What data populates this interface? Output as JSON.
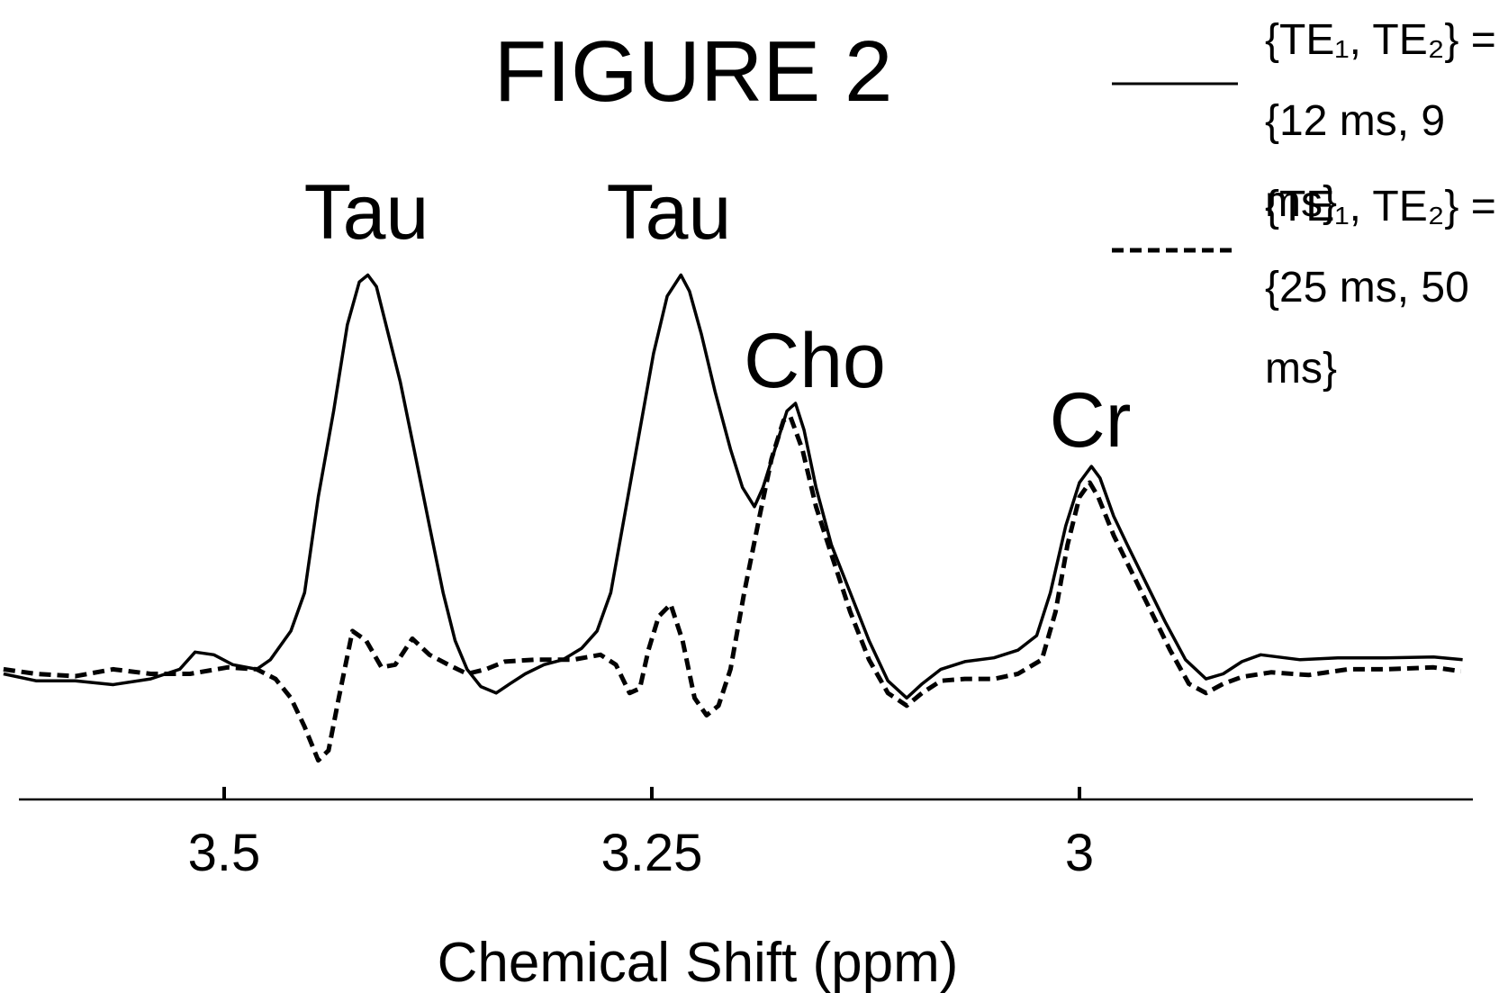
{
  "chart_data": {
    "type": "line",
    "title": "FIGURE 2",
    "x_label": "Chemical Shift (ppm)",
    "xlim": [
      3.62,
      2.77
    ],
    "ylim": [
      -34,
      125
    ],
    "xticks": [
      3.5,
      3.25,
      3
    ],
    "grid": false,
    "legend": "top-right",
    "annotations": [
      "Tau",
      "Tau",
      "Cho",
      "Cr"
    ],
    "series": [
      {
        "name": "{TE₁, TE₂} =\n{12 ms, 9 ms}",
        "color": "#000000",
        "dash": false,
        "x": [
          3.629,
          3.61,
          3.587,
          3.565,
          3.543,
          3.526,
          3.517,
          3.506,
          3.495,
          3.481,
          3.473,
          3.461,
          3.453,
          3.445,
          3.436,
          3.428,
          3.421,
          3.416,
          3.411,
          3.404,
          3.397,
          3.389,
          3.38,
          3.372,
          3.365,
          3.358,
          3.35,
          3.341,
          3.333,
          3.324,
          3.313,
          3.302,
          3.291,
          3.282,
          3.274,
          3.266,
          3.257,
          3.249,
          3.241,
          3.233,
          3.228,
          3.221,
          3.213,
          3.204,
          3.197,
          3.19,
          3.185,
          3.178,
          3.171,
          3.166,
          3.161,
          3.154,
          3.145,
          3.134,
          3.123,
          3.112,
          3.101,
          3.092,
          3.081,
          3.067,
          3.05,
          3.036,
          3.025,
          3.017,
          3.008,
          3.0,
          2.993,
          2.988,
          2.98,
          2.972,
          2.961,
          2.95,
          2.938,
          2.926,
          2.916,
          2.905,
          2.894,
          2.871,
          2.849,
          2.821,
          2.793,
          2.776
        ],
        "values": [
          -1.2,
          -3,
          -3,
          -4,
          -2.5,
          0,
          4.5,
          3.8,
          1.2,
          0,
          2.5,
          10,
          20,
          45,
          67.5,
          90,
          101.2,
          103,
          100,
          87.5,
          75,
          57.5,
          37.5,
          20,
          7.5,
          0,
          -4.5,
          -6.2,
          -3.8,
          -1.2,
          1.2,
          2.5,
          5.5,
          10,
          20,
          40,
          62.5,
          82.5,
          97.5,
          103,
          98.8,
          87.5,
          72.5,
          57.5,
          47.5,
          42.5,
          47.5,
          57.5,
          67.5,
          69.5,
          62.5,
          47.5,
          32.5,
          20,
          7.5,
          -3,
          -7.5,
          -3.8,
          0,
          2,
          3,
          5,
          8.8,
          20,
          37.5,
          48.8,
          53,
          50,
          40,
          32.5,
          22.5,
          12.5,
          2.5,
          -2.5,
          -1.2,
          2,
          3.8,
          2.5,
          3,
          3,
          3.2,
          2.5
        ]
      },
      {
        "name": "{TE₁, TE₂} =\n{25 ms, 50 ms}",
        "color": "#000000",
        "dash": true,
        "x": [
          3.629,
          3.61,
          3.587,
          3.565,
          3.543,
          3.52,
          3.498,
          3.481,
          3.47,
          3.461,
          3.453,
          3.445,
          3.439,
          3.433,
          3.425,
          3.417,
          3.408,
          3.4,
          3.39,
          3.38,
          3.369,
          3.358,
          3.347,
          3.336,
          3.319,
          3.296,
          3.28,
          3.271,
          3.263,
          3.257,
          3.252,
          3.246,
          3.239,
          3.232,
          3.225,
          3.218,
          3.211,
          3.204,
          3.196,
          3.187,
          3.18,
          3.173,
          3.169,
          3.162,
          3.154,
          3.145,
          3.134,
          3.123,
          3.112,
          3.101,
          3.092,
          3.081,
          3.067,
          3.05,
          3.036,
          3.022,
          3.014,
          3.007,
          3.0,
          2.994,
          2.989,
          2.98,
          2.969,
          2.958,
          2.947,
          2.936,
          2.926,
          2.916,
          2.905,
          2.888,
          2.866,
          2.843,
          2.821,
          2.793,
          2.777
        ],
        "values": [
          0,
          -1.2,
          -1.8,
          0,
          -1.2,
          -1.2,
          0.5,
          0,
          -2.5,
          -7.5,
          -15,
          -23.8,
          -21.2,
          -7.5,
          10,
          7.5,
          0.5,
          1.2,
          8,
          3.8,
          1.2,
          -1.2,
          0,
          2,
          2.5,
          2.5,
          3.8,
          1.2,
          -6.2,
          -5,
          5,
          13.8,
          17,
          7.5,
          -7.5,
          -12,
          -9.5,
          0,
          20,
          40,
          55,
          65,
          66,
          57.5,
          42.5,
          30,
          15,
          2.5,
          -6.2,
          -9.5,
          -6.2,
          -3,
          -2.5,
          -2.5,
          -1.2,
          2.5,
          15,
          32.5,
          45,
          48.8,
          45,
          35,
          25,
          15,
          5,
          -3.8,
          -6.2,
          -3.8,
          -2,
          -0.8,
          -1.5,
          0,
          0,
          0.5,
          -0.5
        ]
      }
    ]
  }
}
